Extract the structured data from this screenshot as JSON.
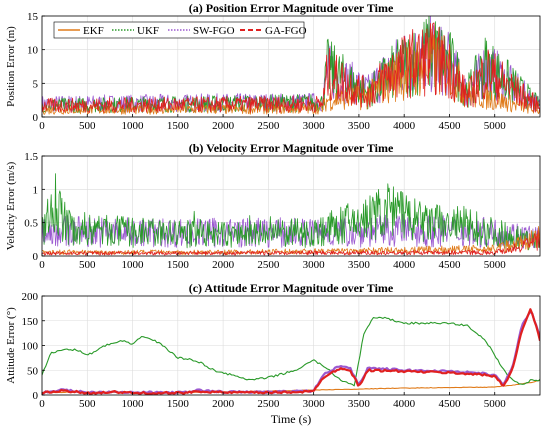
{
  "chart_data": [
    {
      "type": "line",
      "title": "(a) Position Error Magnitude over Time",
      "xlabel": "",
      "ylabel": "Position Error (m)",
      "xlim": [
        0,
        5500
      ],
      "ylim": [
        0,
        15
      ],
      "xticks": [
        0,
        500,
        1000,
        1500,
        2000,
        2500,
        3000,
        3500,
        4000,
        4500,
        5000
      ],
      "yticks": [
        0,
        5,
        10,
        15
      ],
      "grid": true,
      "legend": "top-left",
      "series": [
        {
          "name": "EKF",
          "color": "#e07b1a",
          "style": "solid",
          "x": [
            0,
            3100,
            3150,
            3600,
            3800,
            4000,
            4300,
            4500,
            4700,
            4900,
            5500
          ],
          "values": [
            1.2,
            1.4,
            3.0,
            3.5,
            6.0,
            8.0,
            9.5,
            8.0,
            4.0,
            3.5,
            1.0
          ]
        },
        {
          "name": "UKF",
          "color": "#2a9a2a",
          "style": "dotted",
          "x": [
            0,
            3100,
            3150,
            3600,
            3800,
            4000,
            4300,
            4500,
            4700,
            4900,
            5500
          ],
          "values": [
            2.0,
            2.5,
            8.5,
            4.0,
            7.0,
            9.0,
            11.5,
            9.5,
            4.5,
            9.0,
            2.0
          ]
        },
        {
          "name": "SW-FGO",
          "color": "#9b59d0",
          "style": "dotted",
          "x": [
            0,
            3100,
            3150,
            3600,
            3800,
            4000,
            4300,
            4500,
            4700,
            4900,
            5500
          ],
          "values": [
            2.3,
            2.6,
            8.0,
            4.5,
            7.5,
            9.5,
            11.0,
            9.0,
            4.0,
            8.5,
            2.0
          ]
        },
        {
          "name": "GA-FGO",
          "color": "#e02020",
          "style": "dashed",
          "x": [
            0,
            3100,
            3150,
            3600,
            3800,
            4000,
            4300,
            4500,
            4700,
            4900,
            5500
          ],
          "values": [
            2.0,
            2.3,
            7.5,
            4.0,
            7.0,
            9.0,
            10.5,
            8.5,
            3.5,
            8.0,
            1.8
          ]
        }
      ]
    },
    {
      "type": "line",
      "title": "(b) Velocity Error Magnitude over Time",
      "xlabel": "",
      "ylabel": "Velocity Error (m/s)",
      "xlim": [
        0,
        5500
      ],
      "ylim": [
        0,
        1.5
      ],
      "xticks": [
        0,
        500,
        1000,
        1500,
        2000,
        2500,
        3000,
        3500,
        4000,
        4500,
        5000
      ],
      "yticks": [
        0,
        0.5,
        1,
        1.5
      ],
      "ytick_labels": [
        "0",
        "0.5",
        "1",
        "1.5"
      ],
      "grid": true,
      "series": [
        {
          "name": "EKF",
          "color": "#e07b1a",
          "x": [
            0,
            1000,
            2000,
            3000,
            4000,
            5000,
            5300,
            5500
          ],
          "values": [
            0.08,
            0.08,
            0.08,
            0.1,
            0.12,
            0.15,
            0.3,
            0.4
          ]
        },
        {
          "name": "UKF",
          "color": "#2a9a2a",
          "x": [
            0,
            150,
            300,
            1000,
            2000,
            3000,
            3600,
            3800,
            4200,
            4700,
            5000,
            5500
          ],
          "values": [
            0.5,
            1.1,
            0.6,
            0.5,
            0.45,
            0.5,
            0.8,
            1.0,
            0.7,
            0.65,
            0.5,
            0.3
          ]
        },
        {
          "name": "SW-FGO",
          "color": "#9b59d0",
          "x": [
            0,
            1000,
            2000,
            3000,
            4000,
            5000,
            5500
          ],
          "values": [
            0.55,
            0.5,
            0.5,
            0.5,
            0.55,
            0.5,
            0.4
          ]
        },
        {
          "name": "GA-FGO",
          "color": "#e02020",
          "x": [
            0,
            1000,
            2000,
            3000,
            4000,
            5000,
            5300,
            5500
          ],
          "values": [
            0.06,
            0.06,
            0.06,
            0.07,
            0.07,
            0.08,
            0.2,
            0.35
          ]
        }
      ]
    },
    {
      "type": "line",
      "title": "(c) Attitude Error Magnitude over Time",
      "xlabel": "Time (s)",
      "ylabel": "Attitude Error (°)",
      "xlim": [
        0,
        5500
      ],
      "ylim": [
        0,
        200
      ],
      "xticks": [
        0,
        500,
        1000,
        1500,
        2000,
        2500,
        3000,
        3500,
        4000,
        4500,
        5000
      ],
      "yticks": [
        0,
        50,
        100,
        150,
        200
      ],
      "grid": true,
      "series": [
        {
          "name": "EKF",
          "color": "#e07b1a",
          "x": [
            0,
            500,
            1000,
            1500,
            2000,
            2500,
            3000,
            3500,
            4000,
            4500,
            5000,
            5200,
            5400,
            5500
          ],
          "values": [
            5,
            6,
            5,
            5,
            6,
            8,
            10,
            12,
            14,
            15,
            16,
            20,
            25,
            30
          ]
        },
        {
          "name": "UKF",
          "color": "#2a9a2a",
          "x": [
            0,
            100,
            200,
            300,
            400,
            500,
            700,
            900,
            1000,
            1100,
            1300,
            1500,
            1700,
            1900,
            2100,
            2300,
            2500,
            2800,
            3000,
            3100,
            3300,
            3450,
            3550,
            3650,
            3800,
            4000,
            4200,
            4500,
            4700,
            4900,
            5100,
            5200,
            5300,
            5400,
            5500
          ],
          "values": [
            40,
            85,
            90,
            93,
            90,
            80,
            100,
            110,
            100,
            120,
            105,
            75,
            70,
            50,
            40,
            30,
            35,
            50,
            70,
            60,
            30,
            20,
            120,
            155,
            155,
            145,
            145,
            145,
            140,
            110,
            50,
            30,
            20,
            30,
            30
          ]
        },
        {
          "name": "SW-FGO",
          "color": "#9b59d0",
          "x": [
            0,
            200,
            400,
            500,
            800,
            1000,
            1600,
            1700,
            2000,
            2500,
            3000,
            3100,
            3300,
            3400,
            3500,
            3600,
            4000,
            4500,
            4800,
            5000,
            5100,
            5200,
            5300,
            5400,
            5500
          ],
          "values": [
            5,
            10,
            8,
            5,
            7,
            5,
            5,
            10,
            6,
            6,
            8,
            40,
            60,
            55,
            20,
            55,
            50,
            48,
            45,
            40,
            20,
            60,
            140,
            170,
            120
          ]
        },
        {
          "name": "GA-FGO",
          "color": "#e02020",
          "x": [
            0,
            200,
            400,
            500,
            800,
            1000,
            1600,
            1700,
            2000,
            2500,
            3000,
            3100,
            3300,
            3400,
            3500,
            3600,
            4000,
            4500,
            4800,
            5000,
            5100,
            5200,
            5300,
            5400,
            5500
          ],
          "values": [
            4,
            8,
            6,
            4,
            6,
            4,
            4,
            8,
            5,
            5,
            7,
            35,
            55,
            50,
            18,
            50,
            48,
            45,
            42,
            38,
            18,
            55,
            130,
            175,
            110
          ]
        }
      ]
    }
  ]
}
